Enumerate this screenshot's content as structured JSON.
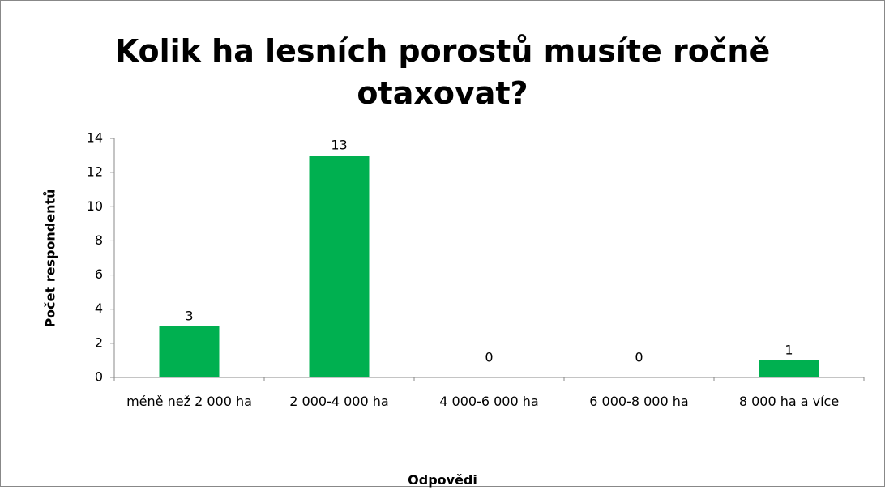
{
  "chart_data": {
    "type": "bar",
    "title": "Kolik ha lesních porostů musíte ročně otaxovat?",
    "x_label": "Odpovědi",
    "y_label": "Počet respondentů",
    "categories": [
      "méně než 2 000 ha",
      "2 000-4 000 ha",
      "4 000-6 000 ha",
      "6 000-8 000 ha",
      "8 000 ha a více"
    ],
    "values": [
      3,
      13,
      0,
      0,
      1
    ],
    "color": "#00b050",
    "ylim": [
      0,
      14
    ],
    "yticks": [
      0,
      2,
      4,
      6,
      8,
      10,
      12,
      14
    ],
    "grid": false
  }
}
